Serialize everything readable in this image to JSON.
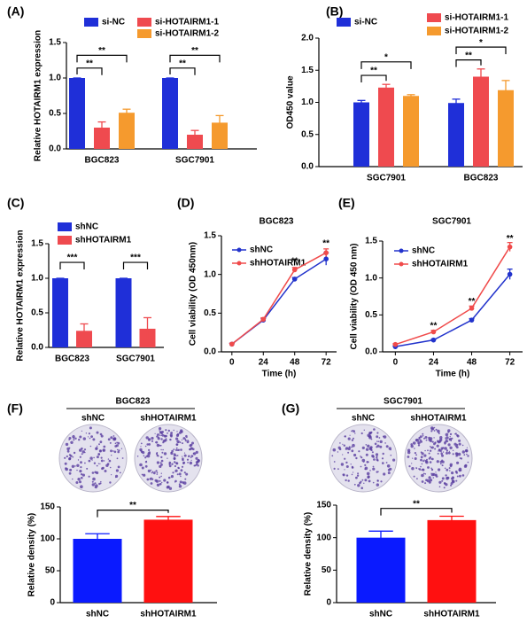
{
  "chart_data": [
    {
      "type": "bar",
      "panel_label": "(A)",
      "y_label": "Relative HOTAIRM1 expression",
      "categories": [
        "BGC823",
        "SGC7901"
      ],
      "series": [
        {
          "name": "si-NC",
          "color": "#1f2fd8",
          "values": [
            1.0,
            1.0
          ],
          "errors": [
            0,
            0
          ]
        },
        {
          "name": "si-HOTAIRM1-1",
          "color": "#ef4a4f",
          "values": [
            0.3,
            0.2
          ],
          "errors": [
            0.08,
            0.06
          ]
        },
        {
          "name": "si-HOTAIRM1-2",
          "color": "#f59a2e",
          "values": [
            0.51,
            0.37
          ],
          "errors": [
            0.05,
            0.1
          ]
        }
      ],
      "ylim": [
        0,
        1.5
      ],
      "yticks": [
        {
          "value": 0,
          "label": "0.0"
        },
        0.5,
        {
          "value": 1,
          "label": "1.0"
        },
        1.5
      ],
      "annotations": [
        "**",
        "**",
        "**",
        "**"
      ]
    },
    {
      "type": "bar",
      "panel_label": "(B)",
      "y_label": "OD450 value",
      "categories": [
        "SGC7901",
        "BGC823"
      ],
      "series": [
        {
          "name": "si-NC",
          "color": "#1f2fd8",
          "values": [
            1.0,
            0.99
          ],
          "errors": [
            0.03,
            0.06
          ]
        },
        {
          "name": "si-HOTAIRM1-1",
          "color": "#ef4a4f",
          "values": [
            1.23,
            1.4
          ],
          "errors": [
            0.05,
            0.12
          ]
        },
        {
          "name": "si-HOTAIRM1-2",
          "color": "#f59a2e",
          "values": [
            1.1,
            1.19
          ],
          "errors": [
            0.02,
            0.15
          ]
        }
      ],
      "ylim": [
        0,
        2
      ],
      "yticks": [
        {
          "value": 0,
          "label": "0.0"
        },
        0.5,
        {
          "value": 1,
          "label": "1.0"
        },
        1.5,
        {
          "value": 2,
          "label": "2.0"
        }
      ],
      "annotations": [
        "**",
        "*",
        "**",
        "*"
      ]
    },
    {
      "type": "bar",
      "panel_label": "(C)",
      "y_label": "Relative HOTAIRM1 expression",
      "categories": [
        "BGC823",
        "SGC7901"
      ],
      "series": [
        {
          "name": "shNC",
          "color": "#1f2fd8",
          "values": [
            1.0,
            1.0
          ],
          "errors": [
            0,
            0
          ]
        },
        {
          "name": "shHOTAIRM1",
          "color": "#ef4a4f",
          "values": [
            0.24,
            0.27
          ],
          "errors": [
            0.1,
            0.16
          ]
        }
      ],
      "ylim": [
        0,
        1.5
      ],
      "yticks": [
        {
          "value": 0,
          "label": "0.0"
        },
        0.5,
        {
          "value": 1,
          "label": "1.0"
        },
        1.5
      ],
      "annotations": [
        "***",
        "***"
      ]
    },
    {
      "type": "line",
      "panel_label": "(D)",
      "title": "BGC823",
      "x_label": "Time (h)",
      "y_label": "Cell viability (OD 450nm)",
      "x": [
        0,
        24,
        48,
        72
      ],
      "series": [
        {
          "name": "shNC",
          "color": "#2233cc",
          "values": [
            0.1,
            0.41,
            0.94,
            1.2
          ],
          "errors": [
            0.01,
            0.02,
            0.02,
            0.08
          ]
        },
        {
          "name": "shHOTAIRM1",
          "color": "#f04b4b",
          "values": [
            0.1,
            0.42,
            1.06,
            1.28
          ],
          "errors": [
            0.01,
            0.02,
            0.03,
            0.05
          ]
        }
      ],
      "xlim": [
        -8,
        80
      ],
      "xticks": [
        0,
        24,
        48,
        72
      ],
      "ylim": [
        0,
        1.5
      ],
      "yticks": [
        {
          "value": 0,
          "label": "0.0"
        },
        0.5,
        {
          "value": 1,
          "label": "1.0"
        },
        1.5
      ],
      "annotations": [
        "**",
        "**"
      ]
    },
    {
      "type": "line",
      "panel_label": "(E)",
      "title": "SGC7901",
      "x_label": "Time (h)",
      "y_label": "Cell viability (OD 450 nm)",
      "x": [
        0,
        24,
        48,
        72
      ],
      "series": [
        {
          "name": "shNC",
          "color": "#2233cc",
          "values": [
            0.07,
            0.16,
            0.43,
            1.05
          ],
          "errors": [
            0.01,
            0.01,
            0.02,
            0.07
          ]
        },
        {
          "name": "shHOTAIRM1",
          "color": "#f04b4b",
          "values": [
            0.1,
            0.27,
            0.59,
            1.42
          ],
          "errors": [
            0.01,
            0.02,
            0.03,
            0.06
          ]
        }
      ],
      "xlim": [
        -8,
        80
      ],
      "xticks": [
        0,
        24,
        48,
        72
      ],
      "ylim": [
        0,
        1.5
      ],
      "yticks": [
        {
          "value": 0,
          "label": "0.0"
        },
        0.5,
        {
          "value": 1,
          "label": "1.0"
        },
        1.5
      ],
      "annotations": [
        "**",
        "**",
        "**"
      ]
    },
    {
      "type": "bar",
      "panel_label": "(F)",
      "title": "BGC823",
      "y_label": "Relative density (%)",
      "categories": [
        "shNC",
        "shHOTAIRM1"
      ],
      "values": [
        100,
        130
      ],
      "errors": [
        8,
        5
      ],
      "colors": [
        "#0a1aff",
        "#ff1010"
      ],
      "ylim": [
        0,
        150
      ],
      "yticks": [
        0,
        50,
        100,
        150
      ],
      "annotations": [
        "**"
      ]
    },
    {
      "type": "bar",
      "panel_label": "(G)",
      "title": "SGC7901",
      "y_label": "Relative density (%)",
      "categories": [
        "shNC",
        "shHOTAIRM1"
      ],
      "values": [
        100,
        127
      ],
      "errors": [
        10,
        6
      ],
      "colors": [
        "#0a1aff",
        "#ff1010"
      ],
      "ylim": [
        0,
        150
      ],
      "yticks": [
        0,
        50,
        100,
        150
      ],
      "annotations": [
        "**"
      ]
    }
  ]
}
